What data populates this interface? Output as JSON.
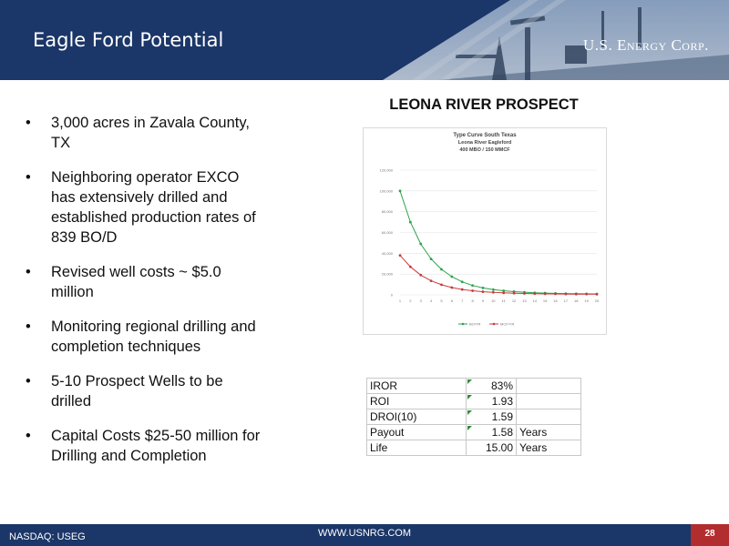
{
  "header": {
    "title": "Eagle Ford Potential",
    "logo_text": "U.S. Energy Corp."
  },
  "bullets": [
    "3,000 acres in Zavala County, TX",
    "Neighboring operator EXCO has extensively drilled and established production rates of 839 BO/D",
    "Revised well costs ~ $5.0 million",
    "Monitoring regional drilling and completion techniques",
    "5-10 Prospect Wells to be drilled",
    "Capital Costs $25-50 million for Drilling and Completion"
  ],
  "prospect": {
    "title": "LEONA RIVER PROSPECT"
  },
  "chart_data": {
    "type": "line",
    "title": "Type Curve South Texas",
    "subtitle": [
      "Leona River Eagleford",
      "400 MBO / 150 MMCF"
    ],
    "x": [
      1,
      2,
      3,
      4,
      5,
      6,
      7,
      8,
      9,
      10,
      11,
      12,
      13,
      14,
      15,
      16,
      17,
      18,
      19,
      20
    ],
    "ylim": [
      0,
      120000
    ],
    "yticks": [
      "0",
      "20,000",
      "40,000",
      "60,000",
      "80,000",
      "100,000",
      "120,000"
    ],
    "grid": true,
    "legend_position": "bottom",
    "series": [
      {
        "name": "BO/YR",
        "color": "#2ca24c",
        "values": [
          100000,
          70000,
          49000,
          34500,
          24500,
          17500,
          12500,
          9000,
          6700,
          5000,
          3900,
          3100,
          2500,
          2000,
          1700,
          1400,
          1200,
          1100,
          1000,
          900
        ]
      },
      {
        "name": "MCF/YR",
        "color": "#c83c3c",
        "values": [
          38000,
          27000,
          19000,
          13500,
          9700,
          7000,
          5200,
          3900,
          3000,
          2400,
          1900,
          1600,
          1300,
          1100,
          950,
          850,
          750,
          700,
          650,
          600
        ]
      }
    ]
  },
  "metrics": [
    {
      "label": "IROR",
      "value": "83%",
      "unit": ""
    },
    {
      "label": "ROI",
      "value": "1.93",
      "unit": ""
    },
    {
      "label": "DROI(10)",
      "value": "1.59",
      "unit": ""
    },
    {
      "label": "Payout",
      "value": "1.58",
      "unit": "Years"
    },
    {
      "label": "Life",
      "value": "15.00",
      "unit": "Years"
    }
  ],
  "footer": {
    "ticker": "NASDAQ: USEG",
    "website": "WWW.USNRG.COM",
    "page_number": "28"
  },
  "colors": {
    "brand_navy": "#1b3668",
    "page_number_red": "#b22d2d"
  }
}
